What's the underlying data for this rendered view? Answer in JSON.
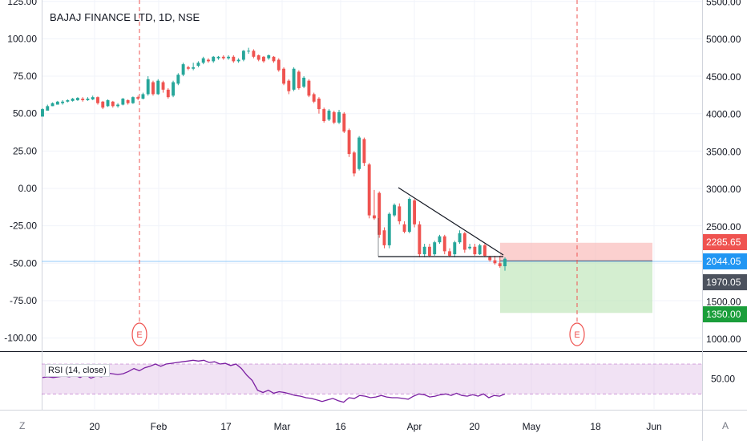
{
  "header": {
    "title": "BAJAJ FINANCE LTD, 1D, NSE"
  },
  "rsi": {
    "label": "RSI (14, close)",
    "tick": "50.00"
  },
  "footer": {
    "left_button": "Z",
    "right_button": "A"
  },
  "chart_data": {
    "type": "candlestick",
    "title": "BAJAJ FINANCE LTD, 1D, NSE",
    "left_axis": {
      "ticks": [
        "125.00",
        "100.00",
        "75.00",
        "50.00",
        "25.00",
        "0.00",
        "-25.00",
        "-50.00",
        "-75.00",
        "-100.00"
      ],
      "range": [
        -110,
        127
      ]
    },
    "right_axis": {
      "ticks": [
        "5500.00",
        "5000.00",
        "4500.00",
        "4000.00",
        "3500.00",
        "3000.00",
        "2500.00",
        "2000.00",
        "1500.00",
        "1000.00"
      ],
      "range": [
        850,
        5550
      ]
    },
    "x_ticks": [
      "20",
      "Feb",
      "17",
      "Mar",
      "16",
      "Apr",
      "20",
      "May",
      "18",
      "Jun"
    ],
    "price_labels": [
      {
        "text": "2285.65",
        "color": "#ef5350"
      },
      {
        "text": "2044.05",
        "color": "#2196f3"
      },
      {
        "text": "1970.05",
        "color": "#4c525e"
      },
      {
        "text": "1350.00",
        "color": "#1a9e3a"
      }
    ],
    "event_markers": [
      "E",
      "E"
    ],
    "rsi_series": {
      "name": "RSI (14, close)",
      "ticks": [
        "50.00"
      ],
      "upper_band": 70,
      "lower_band": 30,
      "values": [
        52,
        53,
        52,
        53,
        54,
        53,
        55,
        52,
        56,
        51,
        54,
        53,
        58,
        57,
        56,
        57,
        60,
        64,
        61,
        65,
        67,
        70,
        67,
        70,
        71,
        72,
        73,
        74,
        75,
        74,
        75,
        72,
        73,
        70,
        71,
        68,
        70,
        64,
        55,
        48,
        35,
        32,
        35,
        31,
        33,
        32,
        30,
        28,
        27,
        25,
        24,
        22,
        20,
        22,
        24,
        21,
        19,
        25,
        24,
        28,
        27,
        25,
        26,
        28,
        26,
        25,
        25,
        24,
        23,
        27,
        30,
        29,
        26,
        27,
        29,
        30,
        28,
        31,
        28,
        27,
        29,
        27,
        30,
        25,
        28,
        27,
        30
      ]
    },
    "candles": [
      [
        48,
        53,
        49,
        53.5
      ],
      [
        52,
        55,
        52,
        56
      ],
      [
        55,
        57,
        55,
        57.5
      ],
      [
        56,
        58,
        56,
        58.5
      ],
      [
        57,
        58,
        56,
        59
      ],
      [
        58,
        59,
        57.5,
        59.5
      ],
      [
        58.5,
        60,
        58,
        60.5
      ],
      [
        59,
        60.5,
        58.5,
        61
      ],
      [
        60,
        59,
        58,
        61
      ],
      [
        59,
        60,
        58.5,
        61
      ],
      [
        59.5,
        61,
        59,
        62
      ],
      [
        61,
        57,
        56,
        61.5
      ],
      [
        58,
        54,
        53,
        58.5
      ],
      [
        55,
        59,
        54.5,
        59.5
      ],
      [
        58,
        55,
        54,
        58.5
      ],
      [
        55,
        56,
        54,
        57
      ],
      [
        56,
        60,
        55.5,
        60.5
      ],
      [
        59,
        57,
        56,
        59.5
      ],
      [
        57,
        61,
        56.5,
        61.5
      ],
      [
        61,
        60,
        59,
        62
      ],
      [
        60,
        63,
        59.5,
        64
      ],
      [
        63,
        73,
        62,
        75
      ],
      [
        71,
        63,
        62,
        72
      ],
      [
        63,
        72,
        62.5,
        73
      ],
      [
        71,
        66,
        64,
        72
      ],
      [
        66,
        61,
        60,
        67
      ],
      [
        62,
        71,
        61,
        72
      ],
      [
        70,
        76,
        69,
        77
      ],
      [
        76,
        83,
        75,
        84
      ],
      [
        81,
        80,
        79,
        82
      ],
      [
        80,
        81,
        79,
        84
      ],
      [
        82,
        84,
        81,
        85
      ],
      [
        84,
        87,
        83,
        88
      ],
      [
        86,
        85,
        84,
        87
      ],
      [
        85,
        88,
        84,
        88.5
      ],
      [
        87,
        88,
        86,
        88.5
      ],
      [
        88,
        87,
        86,
        89
      ],
      [
        87,
        88,
        86,
        89
      ],
      [
        88,
        85,
        84,
        89
      ],
      [
        85,
        86,
        84,
        87
      ],
      [
        86,
        92,
        85,
        92.5
      ],
      [
        92,
        92,
        90,
        94
      ],
      [
        92,
        88,
        87,
        93
      ],
      [
        89,
        86,
        85,
        89.5
      ],
      [
        88,
        85,
        84,
        88.5
      ],
      [
        87,
        89,
        86,
        89.5
      ],
      [
        88,
        85,
        84,
        88.5
      ],
      [
        86,
        79,
        78,
        87
      ],
      [
        80,
        70,
        69,
        81
      ],
      [
        72,
        65,
        63,
        73
      ],
      [
        66,
        80,
        65,
        81
      ],
      [
        78,
        67,
        66,
        79
      ],
      [
        68,
        74,
        67,
        75
      ],
      [
        72,
        62,
        61,
        73
      ],
      [
        63,
        58,
        57,
        64
      ],
      [
        60,
        53,
        50,
        61
      ],
      [
        53,
        45,
        44,
        54
      ],
      [
        46,
        52,
        45,
        53
      ],
      [
        51,
        44,
        43,
        52
      ],
      [
        44,
        51,
        43,
        52.5
      ],
      [
        50,
        38,
        37,
        51
      ],
      [
        39,
        23,
        21,
        40
      ],
      [
        24,
        10,
        8,
        25
      ],
      [
        13,
        34,
        12,
        35
      ],
      [
        33,
        17,
        15,
        34
      ],
      [
        16,
        -18,
        -20,
        17
      ],
      [
        -18,
        -20,
        -21,
        -1
      ],
      [
        -3,
        -31,
        -33,
        -2
      ],
      [
        -28,
        -38,
        -40,
        -26
      ],
      [
        -38,
        -17,
        -40,
        -16
      ],
      [
        -18,
        -11,
        -19,
        -10
      ],
      [
        -12,
        -22,
        -24,
        -10
      ],
      [
        -24,
        -29,
        -30,
        -22
      ],
      [
        -29,
        -7,
        -30,
        -6
      ],
      [
        -8,
        -24,
        -26,
        -7
      ],
      [
        -24,
        -44,
        -46,
        -22
      ],
      [
        -44,
        -39,
        -46,
        -37
      ],
      [
        -39,
        -45,
        -46,
        -37
      ],
      [
        -44,
        -36,
        -45,
        -35
      ],
      [
        -36,
        -32,
        -37,
        -31
      ],
      [
        -32,
        -42,
        -44,
        -31
      ],
      [
        -42,
        -45,
        -46,
        -40
      ],
      [
        -44,
        -36,
        -46,
        -35
      ],
      [
        -36,
        -30,
        -37,
        -28
      ],
      [
        -30,
        -41,
        -43,
        -29
      ],
      [
        -40,
        -39,
        -41,
        -37
      ],
      [
        -39,
        -44,
        -45,
        -37
      ],
      [
        -44,
        -38,
        -44.5,
        -37
      ],
      [
        -38,
        -45,
        -46,
        -37
      ],
      [
        -46,
        -48,
        -49,
        -45
      ],
      [
        -48,
        -50,
        -51,
        -45
      ],
      [
        -50,
        -52,
        -53,
        -45
      ],
      [
        -52,
        -47,
        -55,
        -46
      ]
    ],
    "trade_box": {
      "stop": 2285.65,
      "entry": 2044.05,
      "target": 1350.0
    },
    "last_price": 1970.05
  }
}
